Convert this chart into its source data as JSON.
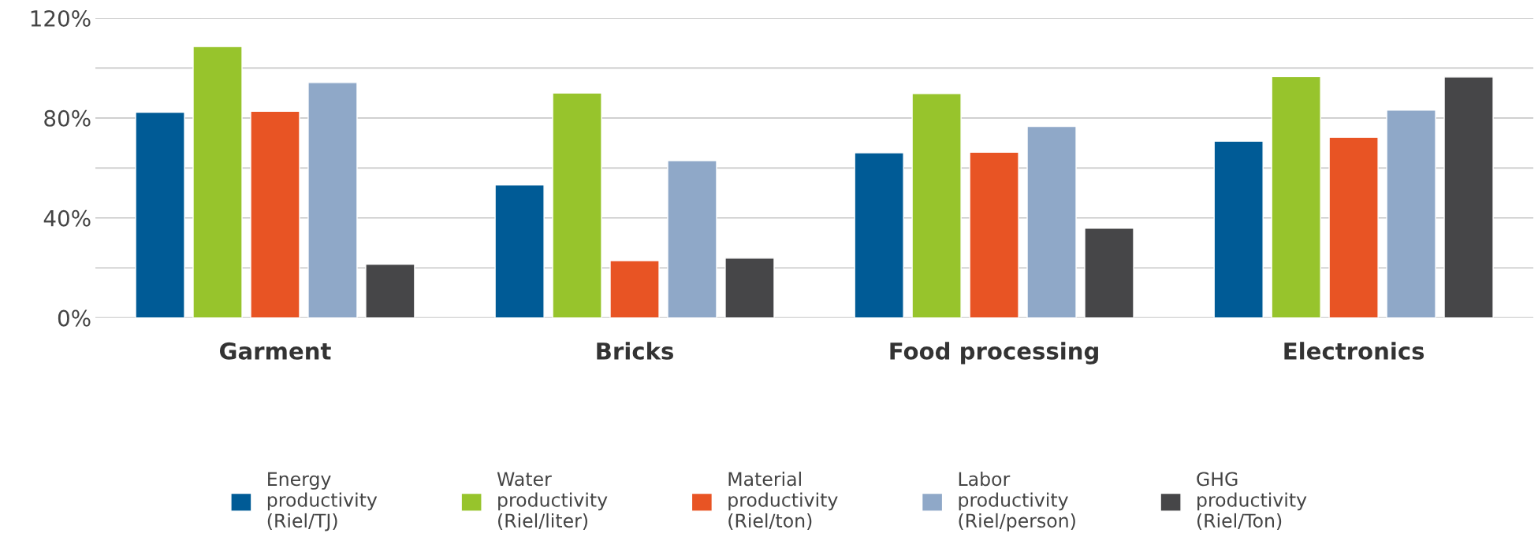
{
  "chart_data": {
    "type": "bar",
    "categories": [
      "Garment",
      "Bricks",
      "Food processing",
      "Electronics"
    ],
    "series": [
      {
        "name": "Energy\nproductivity\n(Riel/TJ)",
        "color": "#005b96",
        "values": [
          82.3,
          53.2,
          66.1,
          70.7
        ]
      },
      {
        "name": "Water\nproductivity\n(Riel/liter)",
        "color": "#97c42c",
        "values": [
          108.6,
          90,
          89.8,
          96.6
        ]
      },
      {
        "name": "Material\nproductivity\n(Riel/ton)",
        "color": "#e85424",
        "values": [
          82.7,
          22.9,
          66.3,
          72.3
        ]
      },
      {
        "name": "Labor\nproductivity\n(Riel/person)",
        "color": "#8fa8c8",
        "values": [
          94.2,
          62.9,
          76.6,
          83.2
        ]
      },
      {
        "name": "GHG\nproductivity\n(Riel/Ton)",
        "color": "#464648",
        "values": [
          21.5,
          23.9,
          35.9,
          96.4
        ]
      }
    ],
    "ylim": [
      0,
      120
    ],
    "yticks": [
      {
        "value": 0,
        "label": "0%"
      },
      {
        "value": 20,
        "label": null
      },
      {
        "value": 40,
        "label": "40%"
      },
      {
        "value": 60,
        "label": null
      },
      {
        "value": 80,
        "label": "80%"
      },
      {
        "value": 100,
        "label": null
      },
      {
        "value": 120,
        "label": "120%"
      }
    ],
    "grid": "y",
    "legend": "bottom"
  }
}
